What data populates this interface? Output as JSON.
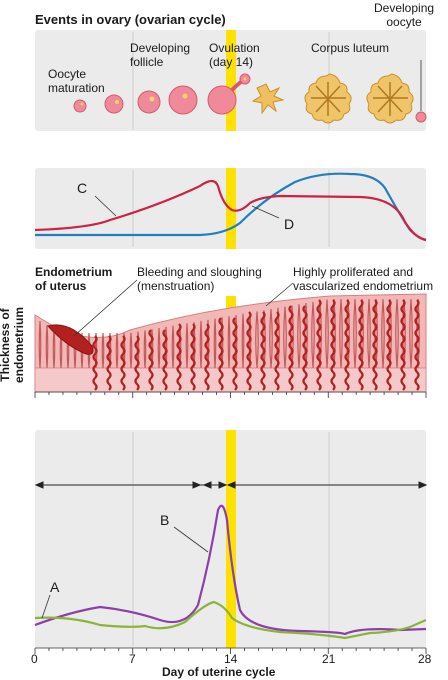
{
  "ovary": {
    "title": "Events in ovary (ovarian cycle)",
    "stages": {
      "oocyte_maturation": "Oocyte\nmaturation",
      "developing_follicle": "Developing\nfollicle",
      "ovulation": "Ovulation\n(day 14)",
      "corpus_luteum": "Corpus luteum",
      "developing_oocyte": "Developing\noocyte"
    }
  },
  "hormone_panel": {
    "label_c": "C",
    "label_d": "D",
    "colors": {
      "c": "#cc2244",
      "d": "#1f7fc1"
    }
  },
  "endometrium": {
    "title": "Endometrium\nof uterus",
    "bleeding_label": "Bleeding and sloughing\n(menstruation)",
    "proliferated_label": "Highly proliferated and\nvascularized endometrium",
    "y_axis_label": "Thickness of\nendometrium"
  },
  "bottom_panel": {
    "label_a": "A",
    "label_b": "B",
    "colors": {
      "a": "#8ab33a",
      "b": "#8b3fa8"
    }
  },
  "x_axis": {
    "title": "Day of uterine cycle",
    "ticks": [
      "0",
      "7",
      "14",
      "21",
      "28"
    ]
  },
  "colors": {
    "ovulation_band": "#ffe100",
    "panel_bg": "#ebebeb",
    "tissue": "#f2b8b8",
    "vessel": "#b32020"
  }
}
